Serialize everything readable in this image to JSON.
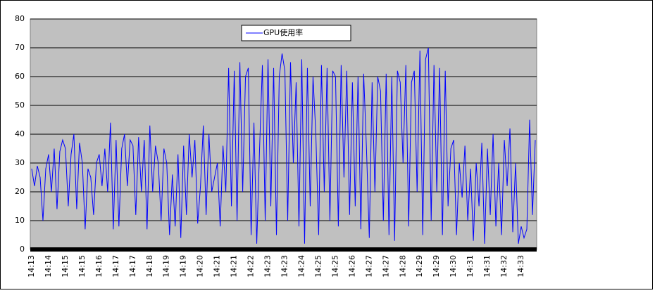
{
  "chart_data": {
    "type": "line",
    "categories": [
      "14:13",
      null,
      null,
      null,
      null,
      null,
      "14:14",
      null,
      null,
      null,
      null,
      null,
      "14:15",
      null,
      null,
      null,
      null,
      null,
      "14:15",
      null,
      null,
      null,
      null,
      null,
      "14:16",
      null,
      null,
      null,
      null,
      null,
      "14:17",
      null,
      null,
      null,
      null,
      null,
      "14:17",
      null,
      null,
      null,
      null,
      null,
      "14:18",
      null,
      null,
      null,
      null,
      null,
      "14:19",
      null,
      null,
      null,
      null,
      null,
      "14:19",
      null,
      null,
      null,
      null,
      null,
      "14:20",
      null,
      null,
      null,
      null,
      null,
      "14:21",
      null,
      null,
      null,
      null,
      null,
      "14:21",
      null,
      null,
      null,
      null,
      null,
      "14:22",
      null,
      null,
      null,
      null,
      null,
      "14:23",
      null,
      null,
      null,
      null,
      null,
      "14:23",
      null,
      null,
      null,
      null,
      null,
      "14:24",
      null,
      null,
      null,
      null,
      null,
      "14:25",
      null,
      null,
      null,
      null,
      null,
      "14:25",
      null,
      null,
      null,
      null,
      null,
      "14:26",
      null,
      null,
      null,
      null,
      null,
      "14:27",
      null,
      null,
      null,
      null,
      null,
      "14:27",
      null,
      null,
      null,
      null,
      null,
      "14:28",
      null,
      null,
      null,
      null,
      null,
      "14:29",
      null,
      null,
      null,
      null,
      null,
      "14:29",
      null,
      null,
      null,
      null,
      null,
      "14:30",
      null,
      null,
      null,
      null,
      null,
      "14:31",
      null,
      null,
      null,
      null,
      null,
      "14:31",
      null,
      null,
      null,
      null,
      null,
      "14:32",
      null,
      null,
      null,
      null,
      null,
      "14:33",
      null,
      null,
      null,
      null,
      null
    ],
    "series": [
      {
        "name": "GPU使用率",
        "color": "#0000ff",
        "values": [
          28,
          22,
          29,
          25,
          10,
          28,
          33,
          20,
          35,
          14,
          34,
          38,
          35,
          15,
          33,
          40,
          14,
          37,
          30,
          7,
          28,
          25,
          12,
          30,
          33,
          22,
          35,
          20,
          44,
          7,
          38,
          8,
          35,
          40,
          22,
          38,
          36,
          12,
          39,
          20,
          38,
          7,
          43,
          20,
          36,
          30,
          10,
          35,
          30,
          5,
          26,
          8,
          33,
          4,
          36,
          12,
          40,
          25,
          38,
          9,
          22,
          43,
          12,
          40,
          20,
          25,
          30,
          8,
          36,
          20,
          63,
          15,
          62,
          10,
          65,
          20,
          60,
          63,
          5,
          44,
          2,
          35,
          64,
          10,
          66,
          15,
          63,
          5,
          60,
          68,
          62,
          10,
          65,
          30,
          58,
          8,
          66,
          2,
          63,
          15,
          60,
          40,
          5,
          64,
          20,
          63,
          10,
          62,
          60,
          8,
          64,
          25,
          62,
          12,
          58,
          15,
          60,
          7,
          61,
          35,
          4,
          58,
          20,
          60,
          55,
          10,
          61,
          5,
          60,
          3,
          62,
          58,
          30,
          64,
          8,
          58,
          62,
          20,
          69,
          5,
          66,
          70,
          10,
          64,
          20,
          63,
          5,
          62,
          15,
          35,
          38,
          5,
          30,
          18,
          36,
          10,
          28,
          3,
          30,
          15,
          37,
          2,
          35,
          12,
          40,
          8,
          30,
          5,
          38,
          22,
          42,
          6,
          30,
          2,
          8,
          4,
          7,
          45,
          12,
          38
        ]
      }
    ],
    "ylim": [
      0,
      80
    ],
    "yticks": [
      0,
      10,
      20,
      30,
      40,
      50,
      60,
      70,
      80
    ],
    "grid": true,
    "legend": "top"
  }
}
